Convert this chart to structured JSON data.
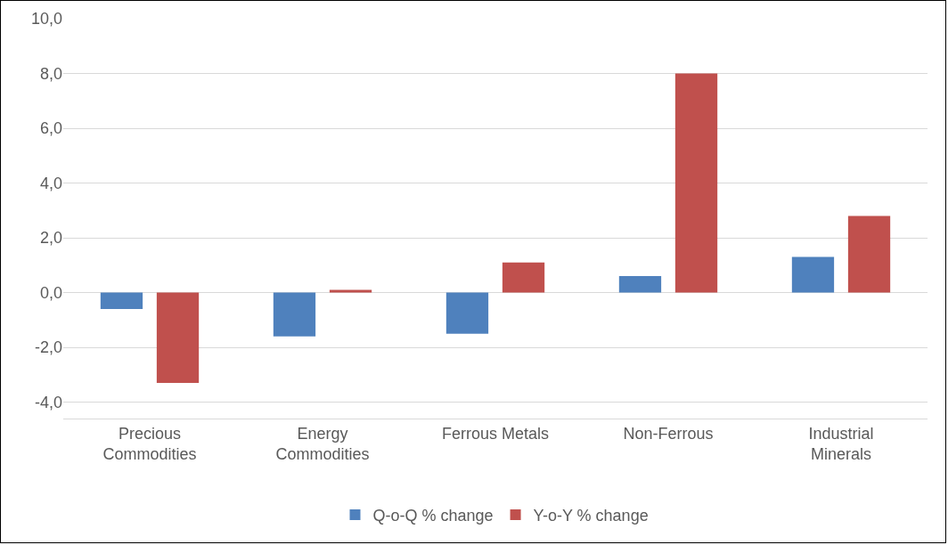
{
  "chart_data": {
    "type": "bar",
    "categories": [
      "Precious Commodities",
      "Energy Commodities",
      "Ferrous Metals",
      "Non-Ferrous",
      "Industrial Minerals"
    ],
    "series": [
      {
        "name": "Q-o-Q % change",
        "color": "#4f81bd",
        "values": [
          -0.6,
          -1.6,
          -1.5,
          0.6,
          1.3
        ]
      },
      {
        "name": "Y-o-Y % change",
        "color": "#c0504d",
        "values": [
          -3.3,
          0.1,
          1.1,
          8.0,
          2.8
        ]
      }
    ],
    "ylim": [
      -4.6,
      10
    ],
    "yticks": [
      {
        "value": -4,
        "label": "-4,0"
      },
      {
        "value": -2,
        "label": "-2,0"
      },
      {
        "value": 0,
        "label": "0,0"
      },
      {
        "value": 2,
        "label": "2,0"
      },
      {
        "value": 4,
        "label": "4,0"
      },
      {
        "value": 6,
        "label": "6,0"
      },
      {
        "value": 8,
        "label": "8,0"
      },
      {
        "value": 10,
        "label": "10,0"
      }
    ],
    "grid": "y",
    "legend": "bottom"
  }
}
